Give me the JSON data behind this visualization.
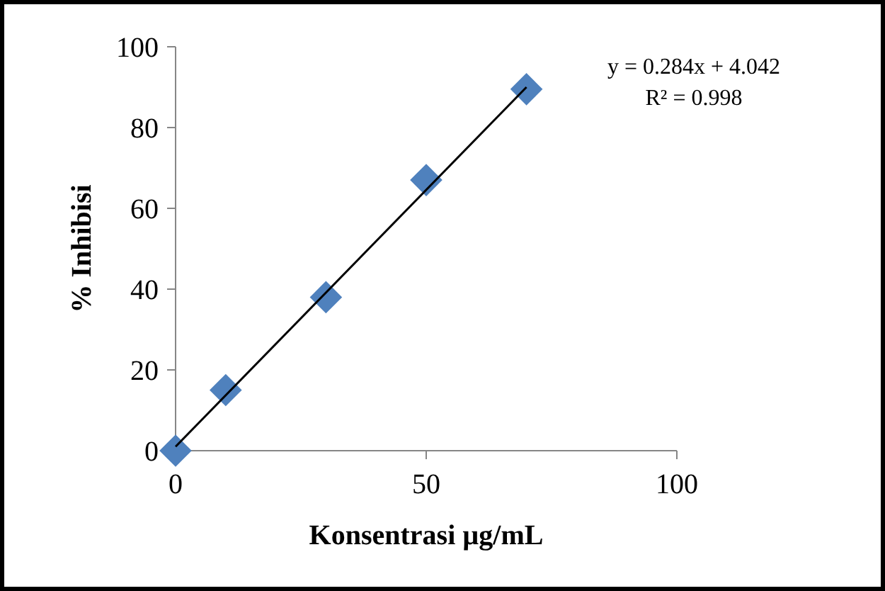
{
  "chart_data": {
    "type": "scatter",
    "xlabel": "Konsentrasi µg/mL",
    "ylabel": "% Inhibisi",
    "xlim": [
      0,
      100
    ],
    "xticks": [
      0,
      50,
      100
    ],
    "ylim": [
      0,
      100
    ],
    "yticks": [
      0,
      20,
      40,
      60,
      80,
      100
    ],
    "marker": "diamond",
    "annotations": [
      "y = 0.284x + 4.042",
      "R² = 0.998"
    ],
    "series": [
      {
        "color": "#4f81bd",
        "x": [
          0,
          10,
          30,
          50,
          70
        ],
        "values": [
          0,
          15,
          38,
          67,
          89.5
        ]
      },
      {
        "type": "line",
        "color": "#000000",
        "x": [
          0,
          70
        ],
        "values": [
          1,
          90
        ],
        "marker": "none"
      }
    ]
  }
}
